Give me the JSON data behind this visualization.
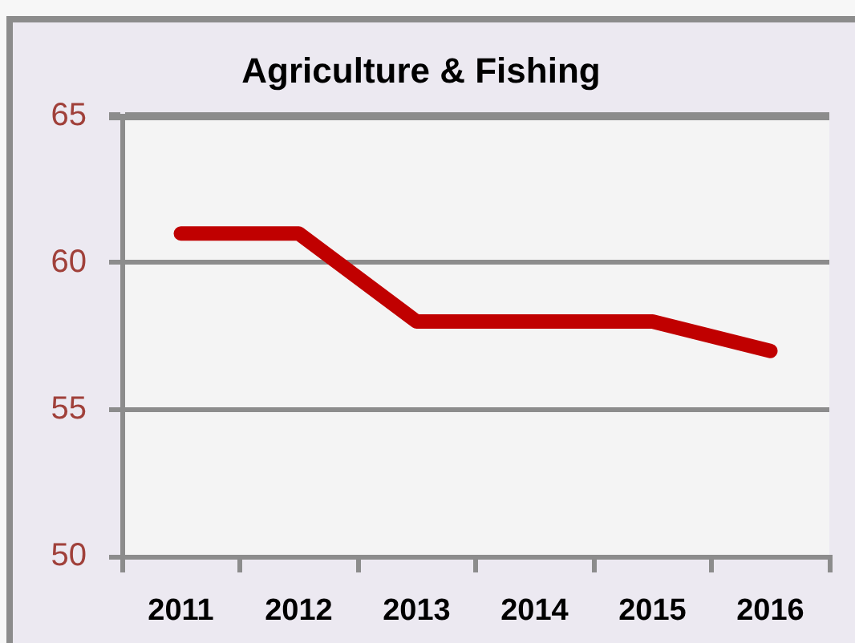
{
  "chart_data": {
    "type": "line",
    "title": "Agriculture & Fishing",
    "categories": [
      "2011",
      "2012",
      "2013",
      "2014",
      "2015",
      "2016"
    ],
    "values": [
      61,
      61,
      58,
      58,
      58,
      57
    ],
    "color": "#c00000",
    "ylim": [
      50,
      65
    ],
    "yticks": [
      50,
      55,
      60,
      65
    ],
    "grid": "y"
  }
}
